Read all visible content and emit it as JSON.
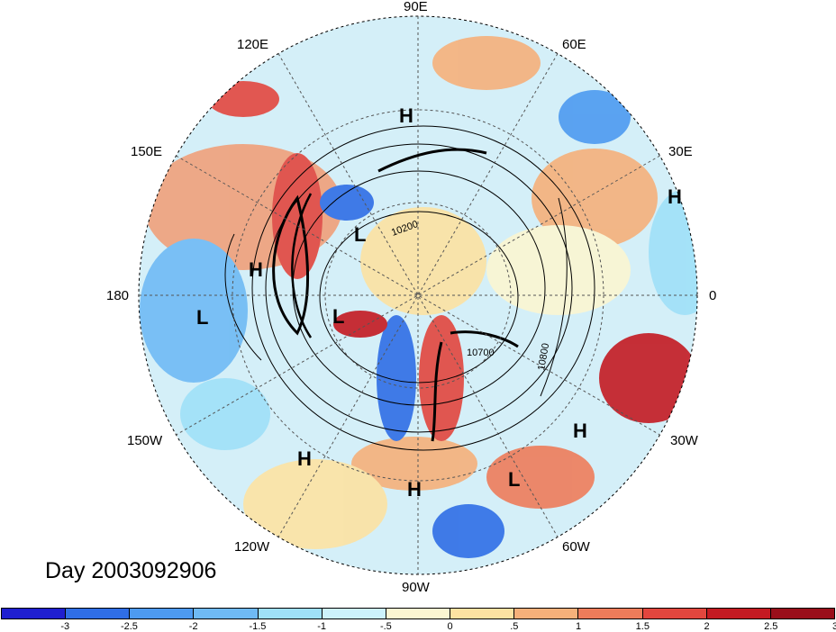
{
  "title": "Day 2003092906",
  "longitude_labels": {
    "lon_90E": "90E",
    "lon_60E": "60E",
    "lon_30E": "30E",
    "lon_0": "0",
    "lon_30W": "30W",
    "lon_60W": "60W",
    "lon_90W": "90W",
    "lon_120W": "120W",
    "lon_150W": "150W",
    "lon_180": "180",
    "lon_150E": "150E",
    "lon_120E": "120E"
  },
  "pressure_centers": [
    {
      "id": "h1",
      "label": "H"
    },
    {
      "id": "h2",
      "label": "H"
    },
    {
      "id": "h3",
      "label": "H"
    },
    {
      "id": "h4",
      "label": "H"
    },
    {
      "id": "h5",
      "label": "H"
    },
    {
      "id": "h6",
      "label": "H"
    },
    {
      "id": "l1",
      "label": "L"
    },
    {
      "id": "l2",
      "label": "L"
    },
    {
      "id": "l3",
      "label": "L"
    },
    {
      "id": "l4",
      "label": "L"
    }
  ],
  "contour_labels": [
    "10200",
    "10700",
    "10800"
  ],
  "colorbar": {
    "colors": [
      "#1f1fd0",
      "#2f6ee6",
      "#4d9af0",
      "#6fbaf4",
      "#9fe0f8",
      "#cdf2fb",
      "#fbf6d2",
      "#fde2a2",
      "#f6b07a",
      "#ee7c5a",
      "#e2463e",
      "#c41a22",
      "#9a0f1a"
    ],
    "ticks": [
      "-3",
      "-2.5",
      "-2",
      "-1.5",
      "-1",
      "-.5",
      "0",
      ".5",
      "1",
      "1.5",
      "2",
      "2.5",
      "3"
    ]
  }
}
